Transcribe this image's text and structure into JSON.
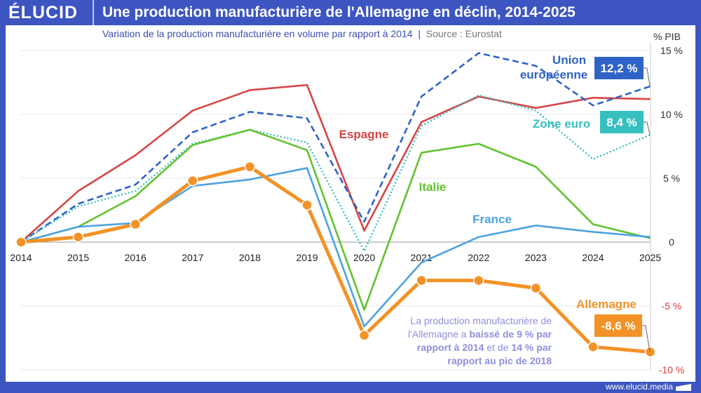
{
  "header": {
    "logo": "ÉLUCID",
    "title": "Une production manufacturière de l'Allemagne en déclin, 2014-2025"
  },
  "subtitle": "Variation de la production manufacturière en volume par rapport à 2014",
  "source": "Source : Eurostat",
  "footer": "www.elucid.media",
  "note": {
    "p1": "La production manufacturière de l'Allemagne a ",
    "b1": "baissé de 9 %",
    "p2": " ",
    "b2": "par rapport à 2014",
    "p3": " et de ",
    "b3": "14 %",
    "p4": " ",
    "b4": "par rapport au pic de 2018"
  },
  "chart_data": {
    "type": "line",
    "ylabel": "% PIB",
    "ylim": [
      -10,
      15
    ],
    "yticks": [
      "15 %",
      "10 %",
      "5 %",
      "0",
      "-5 %",
      "-10 %"
    ],
    "ytick_values": [
      15,
      10,
      5,
      0,
      -5,
      -10
    ],
    "grid": true,
    "x": [
      "2014",
      "2015",
      "2016",
      "2017",
      "2018",
      "2019",
      "2020",
      "2021",
      "2022",
      "2023",
      "2024",
      "2025"
    ],
    "series": [
      {
        "name": "Espagne",
        "color": "#d64545",
        "style": "solid",
        "values": [
          0,
          4.0,
          6.8,
          10.3,
          11.9,
          12.3,
          0.9,
          9.4,
          11.4,
          10.5,
          11.3,
          11.2
        ]
      },
      {
        "name": "Union européenne",
        "color": "#2f63c7",
        "style": "dashed",
        "values": [
          0,
          3.0,
          4.5,
          8.6,
          10.2,
          9.7,
          1.6,
          11.4,
          14.8,
          13.8,
          10.7,
          12.2
        ],
        "end_label": "12,2 %"
      },
      {
        "name": "Zone euro",
        "color": "#35bfbf",
        "style": "dotted",
        "values": [
          0,
          2.8,
          4.0,
          7.7,
          8.8,
          7.8,
          -0.7,
          9.1,
          11.5,
          10.3,
          6.5,
          8.4
        ],
        "end_label": "8,4 %"
      },
      {
        "name": "Italie",
        "color": "#62c22e",
        "style": "solid",
        "values": [
          0,
          1.2,
          3.6,
          7.6,
          8.8,
          7.2,
          -5.3,
          7.0,
          7.7,
          5.9,
          1.4,
          0.3
        ]
      },
      {
        "name": "France",
        "color": "#4da3e0",
        "style": "solid",
        "values": [
          0,
          1.2,
          1.5,
          4.4,
          4.9,
          5.8,
          -6.6,
          -1.6,
          0.4,
          1.3,
          0.8,
          0.4
        ]
      },
      {
        "name": "Allemagne",
        "color": "#f39227",
        "style": "thick-markers",
        "values": [
          0,
          0.4,
          1.4,
          4.8,
          5.9,
          2.9,
          -7.3,
          -3.0,
          -3.0,
          -3.6,
          -8.2,
          -8.6
        ],
        "end_label": "-8,6 %"
      }
    ]
  }
}
